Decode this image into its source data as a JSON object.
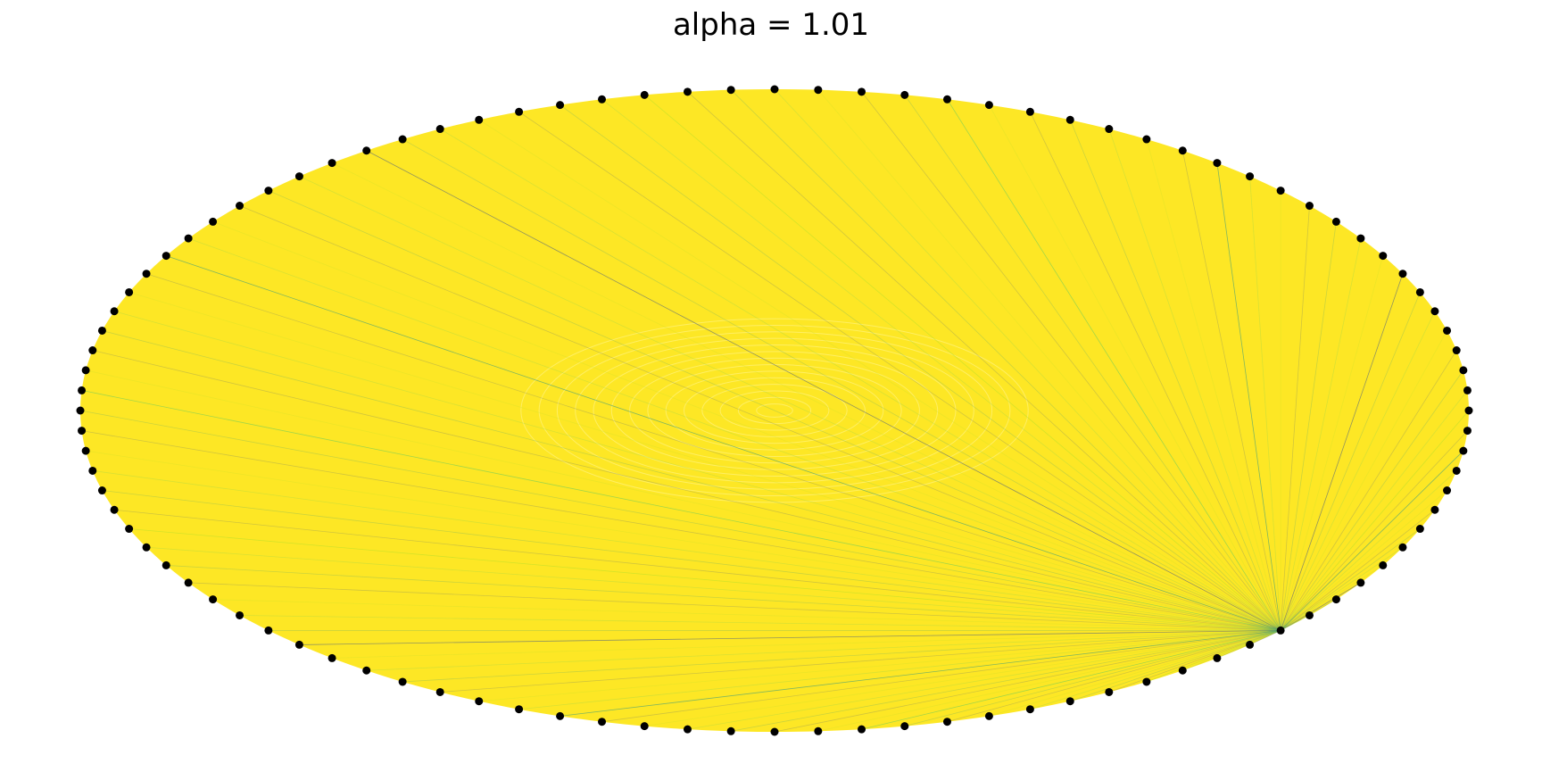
{
  "figure": {
    "title": "alpha = 1.01"
  },
  "graph": {
    "layout": "circular",
    "node_count": 100,
    "node_color": "#000000",
    "edge_base_color": "#fde725",
    "edge_highlight_colors": [
      "#b5de2b",
      "#5ec962",
      "#21918c",
      "#3b528b"
    ],
    "hub_node_index": 88
  }
}
